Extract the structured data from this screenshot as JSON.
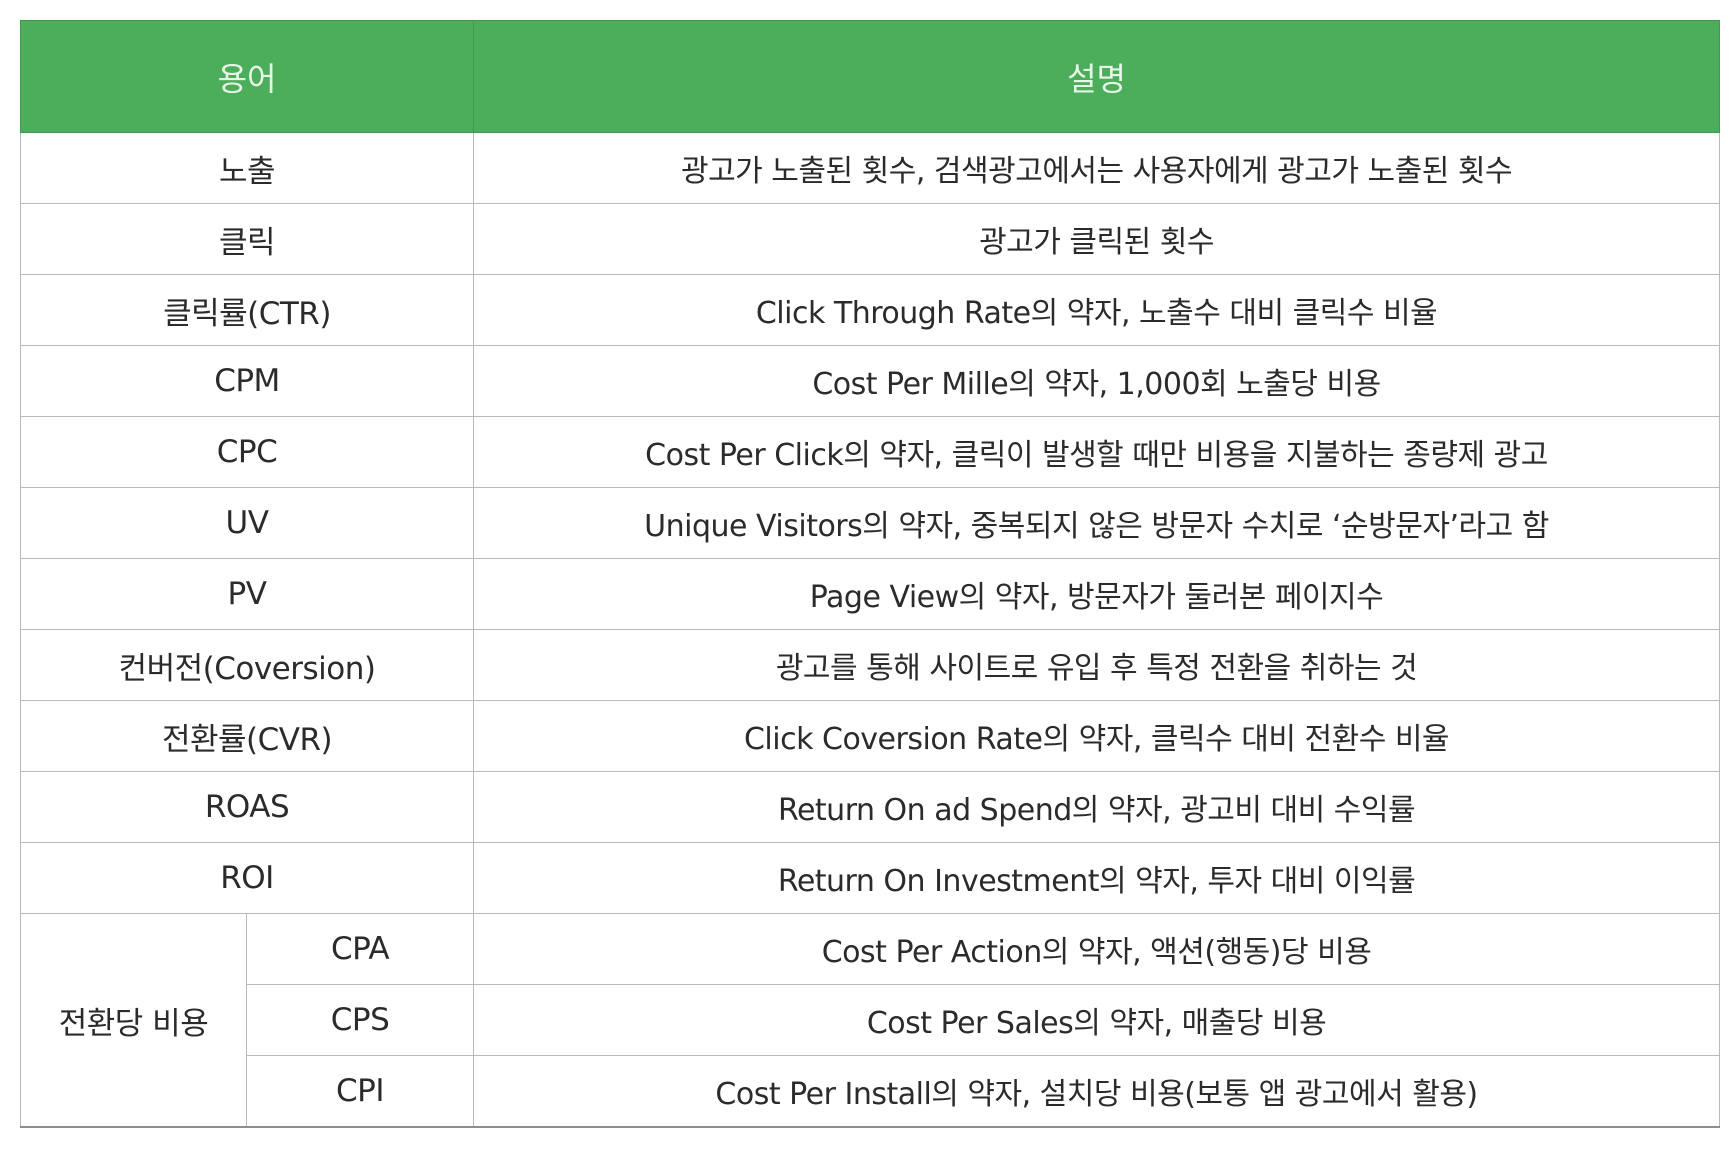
{
  "header": {
    "term": "용어",
    "description": "설명"
  },
  "rows": [
    {
      "term": "노출",
      "description": "광고가 노출된 횟수, 검색광고에서는 사용자에게 광고가 노출된 횟수"
    },
    {
      "term": "클릭",
      "description": "광고가 클릭된 횟수"
    },
    {
      "term": "클릭률(CTR)",
      "description": "Click Through Rate의 약자, 노출수 대비 클릭수 비율"
    },
    {
      "term": "CPM",
      "description": "Cost Per Mille의 약자, 1,000회 노출당 비용"
    },
    {
      "term": "CPC",
      "description": "Cost Per Click의 약자, 클릭이 발생할 때만 비용을 지불하는 종량제 광고"
    },
    {
      "term": "UV",
      "description": "Unique Visitors의 약자, 중복되지 않은 방문자 수치로 ‘순방문자’라고 함"
    },
    {
      "term": "PV",
      "description": "Page View의 약자, 방문자가 둘러본 페이지수"
    },
    {
      "term": "컨버전(Coversion)",
      "description": "광고를 통해 사이트로 유입 후 특정 전환을 취하는 것"
    },
    {
      "term": "전환률(CVR)",
      "description": "Click Coversion Rate의 약자, 클릭수 대비 전환수 비율"
    },
    {
      "term": "ROAS",
      "description": "Return On ad Spend의 약자, 광고비 대비 수익률"
    },
    {
      "term": "ROI",
      "description": "Return On Investment의 약자, 투자 대비 이익률"
    }
  ],
  "group": {
    "label": "전환당 비용",
    "rows": [
      {
        "term": "CPA",
        "description": "Cost Per Action의 약자, 액션(행동)당 비용"
      },
      {
        "term": "CPS",
        "description": "Cost Per Sales의 약자, 매출당 비용"
      },
      {
        "term": "CPI",
        "description": "Cost Per Install의 약자, 설치당 비용(보통 앱 광고에서 활용)"
      }
    ]
  },
  "colors": {
    "header_bg": "#4cae5a",
    "header_text": "#e8f6ea",
    "grid": "#b9b9b9"
  }
}
